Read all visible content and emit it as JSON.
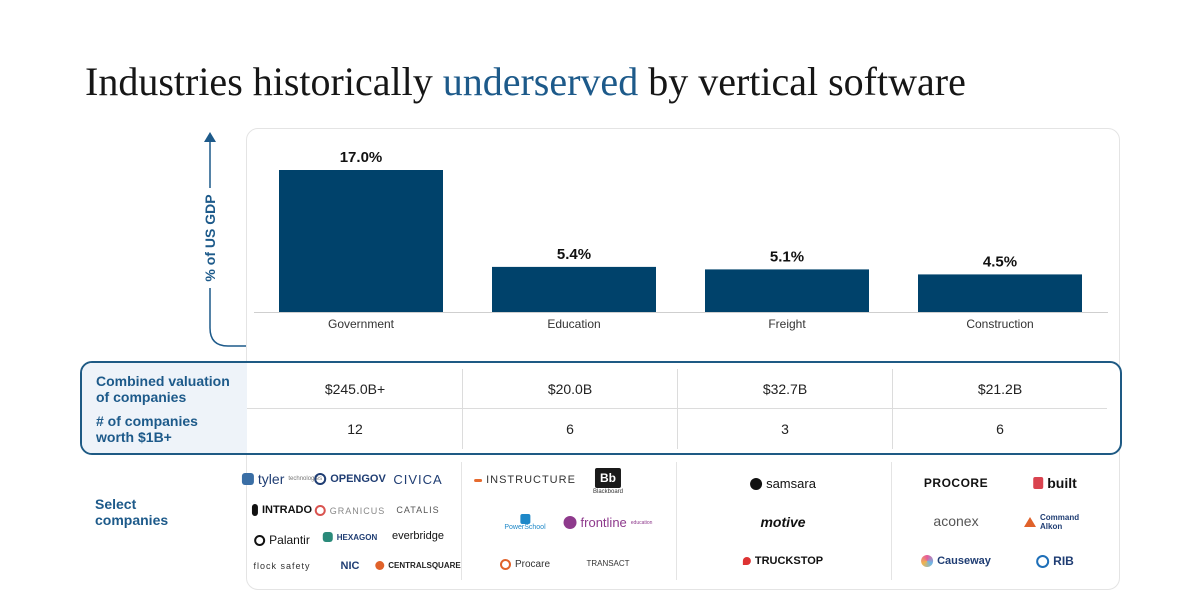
{
  "title": {
    "prefix": "Industries historically ",
    "accent": "underserved",
    "suffix": " by vertical software"
  },
  "chart_data": {
    "type": "bar",
    "categories": [
      "Government",
      "Education",
      "Freight",
      "Construction"
    ],
    "values": [
      17.0,
      5.4,
      5.1,
      4.5
    ],
    "data_labels": [
      "17.0%",
      "5.4%",
      "5.1%",
      "4.5%"
    ],
    "ylabel": "% of US GDP",
    "ylim": [
      0,
      17.0
    ],
    "bar_color": "#00426b",
    "grid": false
  },
  "metrics": {
    "valuation_label": "Combined valuation of companies",
    "valuation_label_line1": "Combined valuation",
    "valuation_label_line2": "of companies",
    "valuations": [
      "$245.0B+",
      "$20.0B",
      "$32.7B",
      "$21.2B"
    ],
    "count_label_line1": "# of companies",
    "count_label_line2": "worth $1B+",
    "counts": [
      "12",
      "6",
      "3",
      "6"
    ]
  },
  "select_label_line1": "Select",
  "select_label_line2": "companies",
  "logos": {
    "government": [
      "tyler",
      "OPENGOV",
      "CIVICA",
      "INTRADO",
      "GRANICUS",
      "CATALIS",
      "Palantir",
      "HEXAGON",
      "everbridge",
      "flock safety",
      "NIC",
      "CENTRALSQUARE"
    ],
    "tyler_sub": "technologies",
    "education": [
      "INSTRUCTURE",
      "Blackboard",
      "PowerSchool",
      "frontline",
      "Procare",
      "TRANSACT"
    ],
    "bb_mark": "Bb",
    "frontline_sub": "education",
    "freight": [
      "samsara",
      "motive",
      "TRUCKSTOP"
    ],
    "construction": [
      "PROCORE",
      "built",
      "aconex",
      "Command Alkon",
      "Causeway",
      "RIB"
    ]
  },
  "colors": {
    "accent": "#1d5a8a",
    "bar": "#00426b",
    "box_border": "#1e5a84",
    "label_bg": "#eef3f9"
  }
}
